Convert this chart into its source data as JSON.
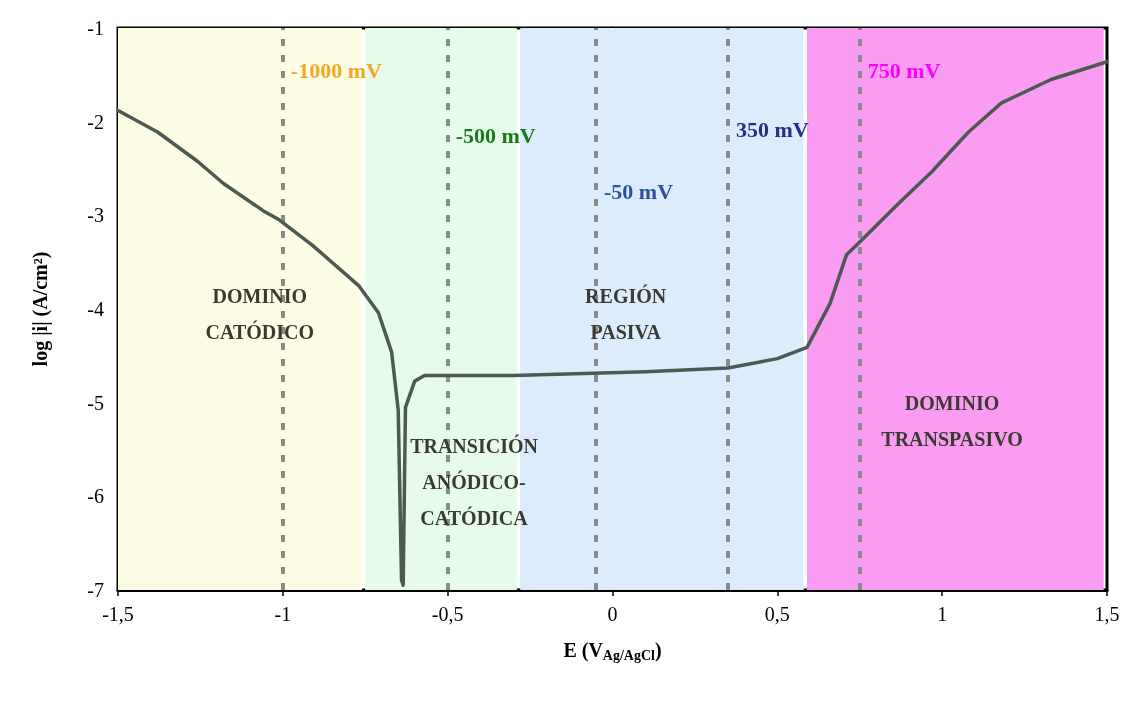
{
  "chart_data": {
    "type": "line",
    "xlabel": "E (V$_{Ag/AgCl}$)",
    "ylabel": "log |i| (A/cm²)",
    "xlim": [
      -1.5,
      1.5
    ],
    "xticks": [
      {
        "value": -1.5,
        "label": "-1,5"
      },
      -1,
      {
        "value": -0.5,
        "label": "-0,5"
      },
      0,
      {
        "value": 0.5,
        "label": "0,5"
      },
      1,
      {
        "value": 1.5,
        "label": "1,5"
      }
    ],
    "ylim": [
      -7,
      -1
    ],
    "yticks": [
      -7,
      -6,
      -5,
      -4,
      -3,
      -2,
      -1
    ],
    "grid": false,
    "marker": "none",
    "line_style": "solid",
    "x": [
      -1.5,
      -1.38,
      -1.26,
      -1.18,
      -1.06,
      -1.01,
      -0.91,
      -0.77,
      -0.71,
      -0.67,
      -0.65,
      -0.64,
      -0.635,
      -0.628,
      -0.6,
      -0.57,
      -0.3,
      0.1,
      0.35,
      0.5,
      0.59,
      0.66,
      0.71,
      0.76,
      0.86,
      0.97,
      1.08,
      1.18,
      1.33,
      1.5
    ],
    "series": [
      {
        "color": "#4d5a52",
        "values": [
          -1.88,
          -2.11,
          -2.42,
          -2.66,
          -2.95,
          -3.05,
          -3.32,
          -3.75,
          -4.04,
          -4.46,
          -5.08,
          -6.89,
          -6.95,
          -5.05,
          -4.77,
          -4.71,
          -4.71,
          -4.67,
          -4.63,
          -4.53,
          -4.41,
          -3.94,
          -3.42,
          -3.25,
          -2.9,
          -2.53,
          -2.11,
          -1.8,
          -1.55,
          -1.36
        ]
      }
    ],
    "bands": [
      {
        "axis": "x",
        "from": -1.5,
        "to": -0.76,
        "color": "#fdfde6",
        "label": "DOMINIO\nCATÓDICO"
      },
      {
        "axis": "x",
        "from": -0.75,
        "to": -0.29,
        "color": "#e6fbe9",
        "label": "TRANSICIÓN\nANÓDICO-\nCATÓDICA"
      },
      {
        "axis": "x",
        "from": -0.28,
        "to": 0.58,
        "color": "#dcecfc",
        "label": "REGIÓN\nPASIVA"
      },
      {
        "axis": "x",
        "from": 0.59,
        "to": 1.49,
        "color": "#f99cf2",
        "label": "DOMINIO\nTRANSPASIVO"
      }
    ],
    "ref_lines": [
      {
        "axis": "x",
        "value": -1,
        "label": "-1000 mV",
        "color": "#8a8a8a",
        "line_style": "dashed"
      },
      {
        "axis": "x",
        "value": -0.5,
        "label": "-500 mV",
        "color": "#8a8a8a",
        "line_style": "dashed"
      },
      {
        "axis": "x",
        "value": -0.05,
        "label": "-50 mV",
        "color": "#8a8a8a",
        "line_style": "dashed"
      },
      {
        "axis": "x",
        "value": 0.35,
        "label": "350 mV",
        "color": "#8a8a8a",
        "line_style": "dashed"
      },
      {
        "axis": "x",
        "value": 0.75,
        "label": "750 mV",
        "color": "#8a8a8a",
        "line_style": "dashed"
      }
    ]
  }
}
